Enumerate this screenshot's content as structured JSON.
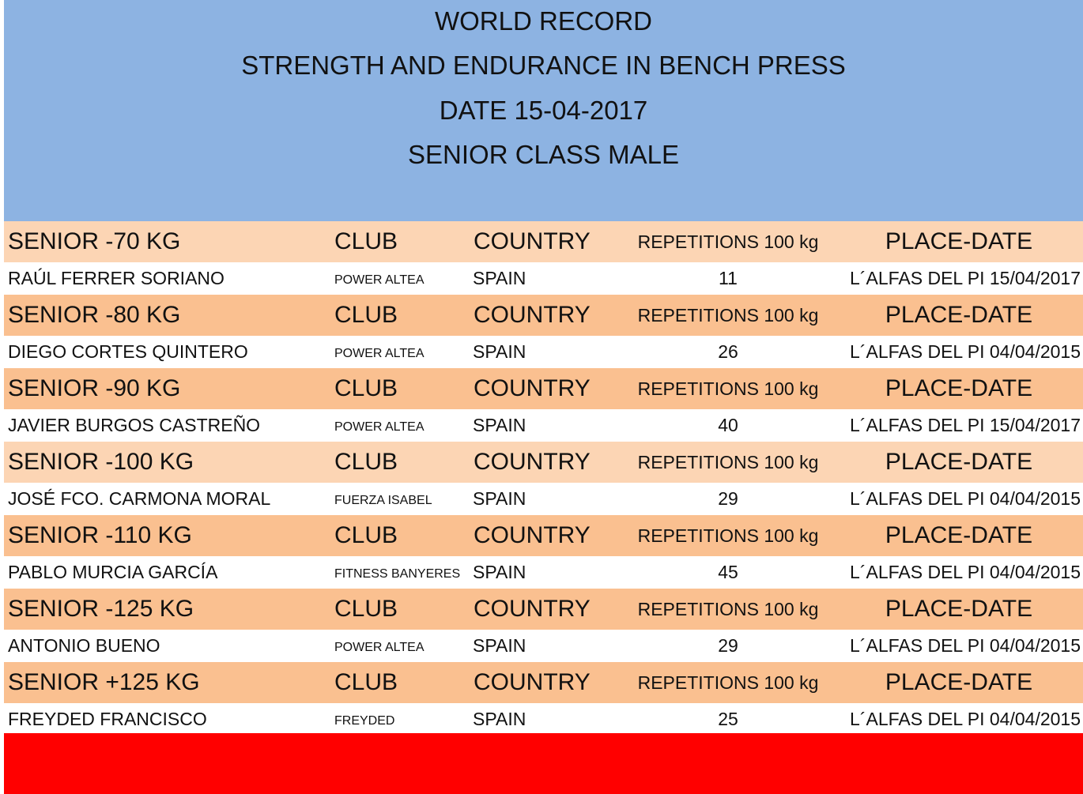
{
  "header": {
    "lines": [
      "WORLD RECORD",
      "STRENGTH AND ENDURANCE IN BENCH PRESS",
      "DATE 15-04-2017",
      "SENIOR CLASS MALE"
    ]
  },
  "table": {
    "sections": [
      {
        "color": "#fcd5b4",
        "weight_class": "SENIOR -70 KG",
        "club": "CLUB",
        "country": "COUNTRY",
        "repetitions": "REPETITIONS 100 kg",
        "place_date": "PLACE-DATE",
        "athlete": {
          "name": "RAÚL FERRER SORIANO",
          "club": "POWER ALTEA",
          "country": "SPAIN",
          "repetitions": "11",
          "place_date": "L´ALFAS DEL PI 15/04/2017"
        }
      },
      {
        "color": "#fac090",
        "weight_class": "SENIOR -80 KG",
        "club": "CLUB",
        "country": "COUNTRY",
        "repetitions": "REPETITIONS 100 kg",
        "place_date": "PLACE-DATE",
        "athlete": {
          "name": "DIEGO CORTES QUINTERO",
          "club": "POWER ALTEA",
          "country": "SPAIN",
          "repetitions": "26",
          "place_date": "L´ALFAS DEL PI 04/04/2015"
        }
      },
      {
        "color": "#fac090",
        "weight_class": "SENIOR -90 KG",
        "club": "CLUB",
        "country": "COUNTRY",
        "repetitions": "REPETITIONS 100 kg",
        "place_date": "PLACE-DATE",
        "athlete": {
          "name": "JAVIER BURGOS CASTREÑO",
          "club": "POWER ALTEA",
          "country": "SPAIN",
          "repetitions": "40",
          "place_date": "L´ALFAS DEL PI 15/04/2017"
        }
      },
      {
        "color": "#fcd5b4",
        "weight_class": "SENIOR -100 KG",
        "club": "CLUB",
        "country": "COUNTRY",
        "repetitions": "REPETITIONS 100 kg",
        "place_date": "PLACE-DATE",
        "athlete": {
          "name": "JOSÉ FCO. CARMONA MORAL",
          "club": "FUERZA ISABEL",
          "country": "SPAIN",
          "repetitions": "29",
          "place_date": "L´ALFAS DEL PI 04/04/2015"
        }
      },
      {
        "color": "#fac090",
        "weight_class": "SENIOR -110 KG",
        "club": "CLUB",
        "country": "COUNTRY",
        "repetitions": "REPETITIONS 100 kg",
        "place_date": "PLACE-DATE",
        "athlete": {
          "name": "PABLO MURCIA GARCÍA",
          "club": "FITNESS  BANYERES",
          "country": "SPAIN",
          "repetitions": "45",
          "place_date": "L´ALFAS DEL PI 04/04/2015"
        }
      },
      {
        "color": "#fac090",
        "weight_class": "SENIOR -125 KG",
        "club": "CLUB",
        "country": "COUNTRY",
        "repetitions": "REPETITIONS 100 kg",
        "place_date": "PLACE-DATE",
        "athlete": {
          "name": "ANTONIO BUENO",
          "club": "POWER ALTEA",
          "country": "SPAIN",
          "repetitions": "29",
          "place_date": "L´ALFAS DEL PI 04/04/2015"
        }
      },
      {
        "color": "#fac090",
        "weight_class": "SENIOR +125 KG",
        "club": "CLUB",
        "country": "COUNTRY",
        "repetitions": "REPETITIONS 100 kg",
        "place_date": "PLACE-DATE",
        "athlete": {
          "name": "FREYDED FRANCISCO",
          "club": "FREYDED",
          "country": "SPAIN",
          "repetitions": "25",
          "place_date": "L´ALFAS DEL PI 04/04/2015"
        }
      }
    ]
  }
}
